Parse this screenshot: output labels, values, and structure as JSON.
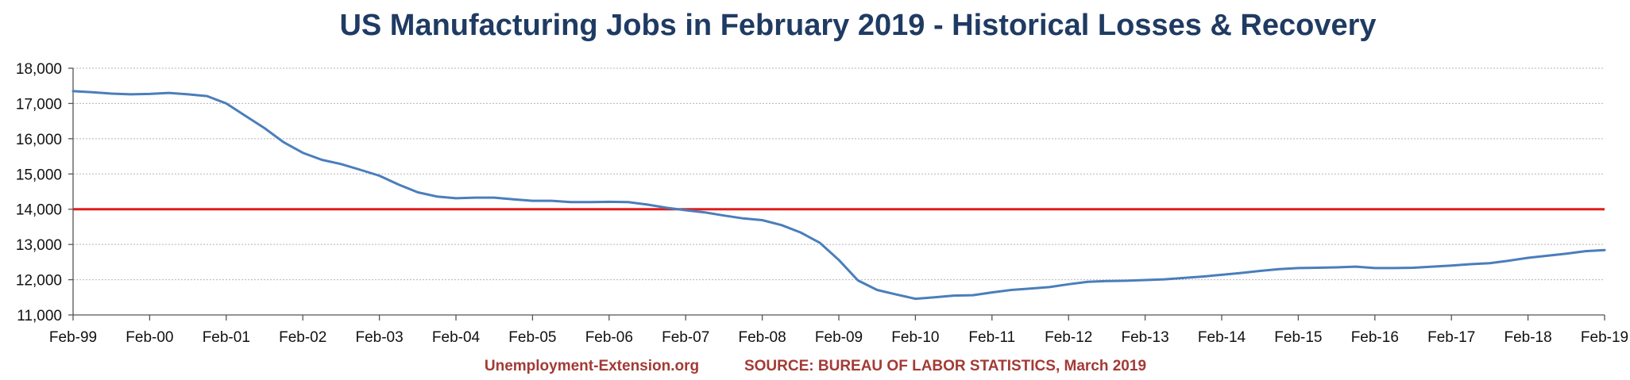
{
  "colors": {
    "title": "#1f3b63",
    "series_line": "#4a7ebb",
    "reference_line": "#e01b1b",
    "credits": "#a33a35",
    "grid": "#b5b5b5"
  },
  "credits": {
    "site": "Unemployment-Extension.org",
    "source": "SOURCE: BUREAU OF LABOR STATISTICS, March 2019"
  },
  "chart_data": {
    "type": "line",
    "title": "US Manufacturing Jobs in February 2019 - Historical Losses & Recovery",
    "xlabel": "",
    "ylabel": "",
    "ylim": [
      11000,
      18000
    ],
    "yticks": [
      11000,
      12000,
      13000,
      14000,
      15000,
      16000,
      17000,
      18000
    ],
    "ytick_labels": [
      "11,000",
      "12,000",
      "13,000",
      "14,000",
      "15,000",
      "16,000",
      "17,000",
      "18,000"
    ],
    "xlim": [
      "Feb-99",
      "Feb-19"
    ],
    "xtick_labels": [
      "Feb-99",
      "Feb-00",
      "Feb-01",
      "Feb-02",
      "Feb-03",
      "Feb-04",
      "Feb-05",
      "Feb-06",
      "Feb-07",
      "Feb-08",
      "Feb-09",
      "Feb-10",
      "Feb-11",
      "Feb-12",
      "Feb-13",
      "Feb-14",
      "Feb-15",
      "Feb-16",
      "Feb-17",
      "Feb-18",
      "Feb-19"
    ],
    "grid": "horizontal",
    "legend": "none",
    "reference_lines": [
      {
        "y": 14000
      }
    ],
    "series": [
      {
        "x": [
          "Feb-99",
          "May-99",
          "Aug-99",
          "Nov-99",
          "Feb-00",
          "May-00",
          "Aug-00",
          "Nov-00",
          "Feb-01",
          "May-01",
          "Aug-01",
          "Nov-01",
          "Feb-02",
          "May-02",
          "Aug-02",
          "Nov-02",
          "Feb-03",
          "May-03",
          "Aug-03",
          "Nov-03",
          "Feb-04",
          "May-04",
          "Aug-04",
          "Nov-04",
          "Feb-05",
          "May-05",
          "Aug-05",
          "Nov-05",
          "Feb-06",
          "May-06",
          "Aug-06",
          "Nov-06",
          "Feb-07",
          "May-07",
          "Aug-07",
          "Nov-07",
          "Feb-08",
          "May-08",
          "Aug-08",
          "Nov-08",
          "Feb-09",
          "May-09",
          "Aug-09",
          "Nov-09",
          "Feb-10",
          "May-10",
          "Aug-10",
          "Nov-10",
          "Feb-11",
          "May-11",
          "Aug-11",
          "Nov-11",
          "Feb-12",
          "May-12",
          "Aug-12",
          "Nov-12",
          "Feb-13",
          "May-13",
          "Aug-13",
          "Nov-13",
          "Feb-14",
          "May-14",
          "Aug-14",
          "Nov-14",
          "Feb-15",
          "May-15",
          "Aug-15",
          "Nov-15",
          "Feb-16",
          "May-16",
          "Aug-16",
          "Nov-16",
          "Feb-17",
          "May-17",
          "Aug-17",
          "Nov-17",
          "Feb-18",
          "May-18",
          "Aug-18",
          "Nov-18",
          "Feb-19"
        ],
        "values": [
          17350,
          17320,
          17280,
          17260,
          17270,
          17300,
          17260,
          17210,
          17000,
          16650,
          16300,
          15900,
          15600,
          15400,
          15280,
          15120,
          14950,
          14700,
          14480,
          14360,
          14310,
          14330,
          14330,
          14280,
          14240,
          14240,
          14200,
          14200,
          14210,
          14200,
          14130,
          14040,
          13970,
          13910,
          13820,
          13740,
          13690,
          13550,
          13340,
          13050,
          12560,
          11980,
          11710,
          11580,
          11460,
          11500,
          11550,
          11560,
          11640,
          11710,
          11750,
          11790,
          11870,
          11940,
          11960,
          11970,
          11990,
          12010,
          12050,
          12090,
          12140,
          12190,
          12250,
          12300,
          12330,
          12340,
          12350,
          12370,
          12330,
          12330,
          12340,
          12370,
          12400,
          12440,
          12470,
          12540,
          12620,
          12680,
          12740,
          12810,
          12840
        ]
      }
    ]
  }
}
